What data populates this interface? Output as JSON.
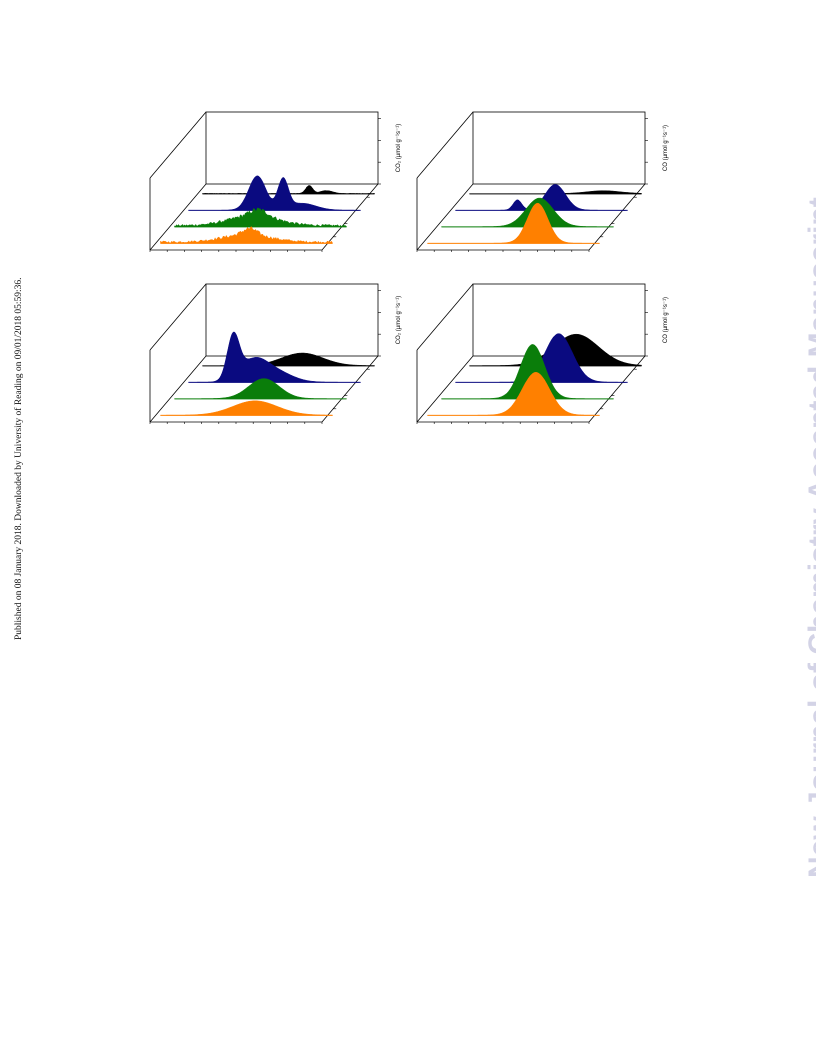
{
  "publication_note": "Published on 08 January 2018. Downloaded by University of Reading on 09/01/2018 05:59:36.",
  "watermark": {
    "text": "New Journal of Chemistry Accepted Manuscript",
    "color": "#d3d3e6"
  },
  "chart_data": [
    {
      "type": "area",
      "panel": "top-left",
      "title": "",
      "ylabel": "CO₂ (µmol g⁻¹s⁻¹)",
      "depth_order": "back-to-front",
      "series": [
        {
          "color": "#000000",
          "noise": 0.02,
          "peaks": [
            {
              "center": 0.62,
              "width": 0.02,
              "height": 0.14
            },
            {
              "center": 0.72,
              "width": 0.035,
              "height": 0.05
            }
          ]
        },
        {
          "color": "#0a0a80",
          "noise": 0.0,
          "peaks": [
            {
              "center": 0.4,
              "width": 0.05,
              "height": 0.6
            },
            {
              "center": 0.55,
              "width": 0.03,
              "height": 0.52
            },
            {
              "center": 0.66,
              "width": 0.08,
              "height": 0.12
            }
          ]
        },
        {
          "color": "#0a7d0a",
          "noise": 0.18,
          "peaks": [
            {
              "center": 0.46,
              "width": 0.14,
              "height": 0.16
            },
            {
              "center": 0.49,
              "width": 0.05,
              "height": 0.1
            }
          ]
        },
        {
          "color": "#ff8000",
          "noise": 0.18,
          "peaks": [
            {
              "center": 0.5,
              "width": 0.14,
              "height": 0.12
            },
            {
              "center": 0.52,
              "width": 0.04,
              "height": 0.1
            }
          ]
        }
      ]
    },
    {
      "type": "area",
      "panel": "top-right",
      "title": "",
      "ylabel": "CO (µmol g⁻¹s⁻¹)",
      "depth_order": "back-to-front",
      "series": [
        {
          "color": "#000000",
          "noise": 0.0,
          "peaks": [
            {
              "center": 0.78,
              "width": 0.1,
              "height": 0.05
            }
          ]
        },
        {
          "color": "#0a0a80",
          "noise": 0.0,
          "peaks": [
            {
              "center": 0.36,
              "width": 0.025,
              "height": 0.18
            },
            {
              "center": 0.58,
              "width": 0.06,
              "height": 0.45
            }
          ]
        },
        {
          "color": "#0a7d0a",
          "noise": 0.0,
          "peaks": [
            {
              "center": 0.57,
              "width": 0.08,
              "height": 0.5
            }
          ]
        },
        {
          "color": "#ff8000",
          "noise": 0.0,
          "peaks": [
            {
              "center": 0.64,
              "width": 0.06,
              "height": 0.7
            }
          ]
        }
      ]
    },
    {
      "type": "area",
      "panel": "bottom-left",
      "title": "",
      "ylabel": "CO₂ (µmol g⁻¹s⁻¹)",
      "depth_order": "back-to-front",
      "series": [
        {
          "color": "#000000",
          "noise": 0.0,
          "peaks": [
            {
              "center": 0.58,
              "width": 0.12,
              "height": 0.22
            }
          ]
        },
        {
          "color": "#0a0a80",
          "noise": 0.0,
          "peaks": [
            {
              "center": 0.26,
              "width": 0.035,
              "height": 0.75
            },
            {
              "center": 0.38,
              "width": 0.08,
              "height": 0.38
            },
            {
              "center": 0.52,
              "width": 0.09,
              "height": 0.16
            }
          ]
        },
        {
          "color": "#0a7d0a",
          "noise": 0.0,
          "peaks": [
            {
              "center": 0.52,
              "width": 0.09,
              "height": 0.35
            }
          ]
        },
        {
          "color": "#ff8000",
          "noise": 0.0,
          "peaks": [
            {
              "center": 0.55,
              "width": 0.13,
              "height": 0.25
            }
          ]
        }
      ]
    },
    {
      "type": "area",
      "panel": "bottom-right",
      "title": "",
      "ylabel": "CO (µmol g⁻¹s⁻¹)",
      "depth_order": "back-to-front",
      "series": [
        {
          "color": "#000000",
          "noise": 0.0,
          "peaks": [
            {
              "center": 0.62,
              "width": 0.13,
              "height": 0.55
            }
          ]
        },
        {
          "color": "#0a0a80",
          "noise": 0.0,
          "peaks": [
            {
              "center": 0.6,
              "width": 0.08,
              "height": 0.85
            }
          ]
        },
        {
          "color": "#0a7d0a",
          "noise": 0.0,
          "peaks": [
            {
              "center": 0.53,
              "width": 0.07,
              "height": 0.95
            }
          ]
        },
        {
          "color": "#ff8000",
          "noise": 0.0,
          "peaks": [
            {
              "center": 0.63,
              "width": 0.08,
              "height": 0.75
            }
          ]
        }
      ]
    }
  ]
}
